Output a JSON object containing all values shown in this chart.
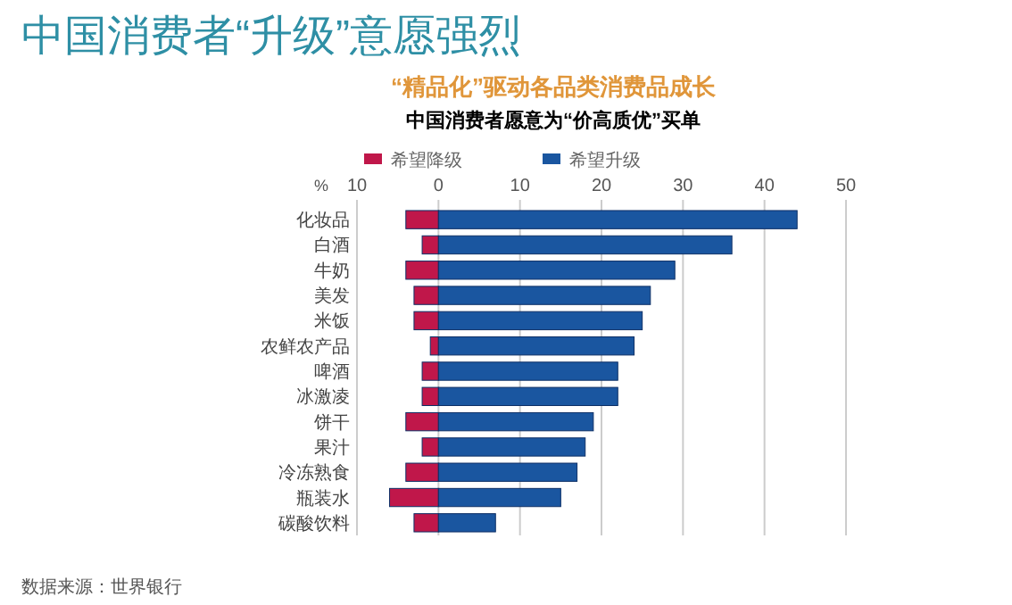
{
  "chart_data": {
    "type": "bar",
    "orientation": "horizontal",
    "stacked": true,
    "title": "中国消费者“升级”意愿强烈",
    "subtitle": "“精品化”驱动各品类消费品成长",
    "xlabel": "%",
    "annotations": [
      "中国消费者愿意为“价高质优”买单",
      "数据来源：世界银行"
    ],
    "categories": [
      "化妆品",
      "白酒",
      "牛奶",
      "美发",
      "米饭",
      "农鲜农产品",
      "啤酒",
      "冰激凌",
      "饼干",
      "果汁",
      "冷冻熟食",
      "瓶装水",
      "碳酸饮料"
    ],
    "series": [
      {
        "name": "希望降级",
        "color": "#c0174a",
        "values": [
          -4,
          -2,
          -4,
          -3,
          -3,
          -1,
          -2,
          -2,
          -4,
          -2,
          -4,
          -6,
          -3
        ]
      },
      {
        "name": "希望升级",
        "color": "#1a56a0",
        "values": [
          44,
          36,
          29,
          26,
          25,
          24,
          22,
          22,
          19,
          18,
          17,
          15,
          7
        ]
      }
    ],
    "xlim": [
      -10,
      50
    ],
    "xticks": [
      {
        "value": -10,
        "label": "10"
      },
      0,
      10,
      20,
      30,
      40,
      50
    ],
    "grid": "x",
    "legend": "top left"
  }
}
